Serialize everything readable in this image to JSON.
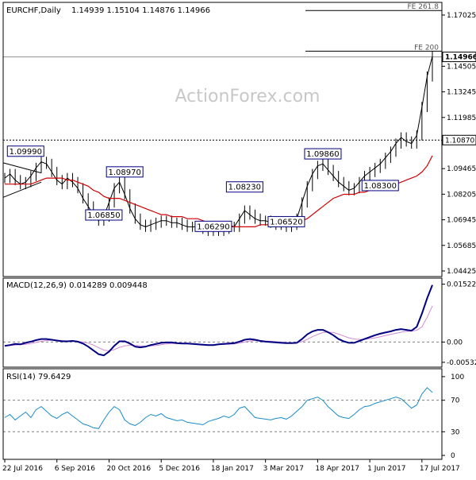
{
  "colors": {
    "background": "#ffffff",
    "frame": "#000000",
    "price": "#000000",
    "moving_average": "#d00000",
    "macd_line": "#000080",
    "signal_line": "#d48ad4",
    "rsi_line": "#1a8cc8",
    "level_line": "#000000",
    "zero_line": "#808080",
    "label_box": "#000080",
    "watermark": "#c8c8c8",
    "current_price_bg": "#ffffff"
  },
  "header": {
    "symbol_label": "EURCHF,Daily",
    "ohlc": "1.14939 1.15104 1.14876 1.14966"
  },
  "watermark": "ActionForex.com",
  "chart_data": [
    {
      "type": "line",
      "panel": "price",
      "title": "EURCHF,Daily",
      "y_ticks": [
        "1.17025",
        "1.14505",
        "1.13245",
        "1.11985",
        "1.09465",
        "1.08205",
        "1.06945",
        "1.05685",
        "1.04425"
      ],
      "y_tick_values": [
        1.17025,
        1.14505,
        1.13245,
        1.11985,
        1.09465,
        1.08205,
        1.06945,
        1.05685,
        1.04425
      ],
      "ylim": [
        1.0415,
        1.1765
      ],
      "current_price": {
        "label": "1.14966",
        "value": 1.14966
      },
      "marked_level": {
        "label": "1.10870",
        "value": 1.1087
      },
      "fibo_levels": [
        {
          "label": "FE 261.8",
          "value": 1.1725
        },
        {
          "label": "FE 200",
          "value": 1.1525
        }
      ],
      "annotations": [
        {
          "label": "1.09990",
          "x": 4,
          "y": 1.0999
        },
        {
          "label": "1.08970",
          "x": 23,
          "y": 1.0897
        },
        {
          "label": "1.06850",
          "x": 19,
          "y": 1.0685
        },
        {
          "label": "1.08230",
          "x": 46,
          "y": 1.0823
        },
        {
          "label": "1.06290",
          "x": 40,
          "y": 1.0629
        },
        {
          "label": "1.06520",
          "x": 54,
          "y": 1.0652
        },
        {
          "label": "1.09860",
          "x": 61,
          "y": 1.0986
        },
        {
          "label": "1.08300",
          "x": 72,
          "y": 1.083
        }
      ],
      "series": [
        {
          "name": "",
          "values": [
            1.09,
            1.092,
            1.089,
            1.087,
            1.088,
            1.091,
            1.095,
            1.098,
            1.097,
            1.093,
            1.089,
            1.087,
            1.09,
            1.088,
            1.085,
            1.08,
            1.076,
            1.072,
            1.069,
            1.071,
            1.078,
            1.085,
            1.088,
            1.082,
            1.075,
            1.07,
            1.067,
            1.066,
            1.067,
            1.068,
            1.069,
            1.069,
            1.068,
            1.068,
            1.067,
            1.066,
            1.066,
            1.066,
            1.065,
            1.064,
            1.064,
            1.064,
            1.065,
            1.066,
            1.066,
            1.07,
            1.074,
            1.072,
            1.07,
            1.069,
            1.069,
            1.068,
            1.067,
            1.067,
            1.066,
            1.067,
            1.07,
            1.078,
            1.086,
            1.092,
            1.096,
            1.097,
            1.094,
            1.091,
            1.088,
            1.086,
            1.084,
            1.085,
            1.088,
            1.091,
            1.093,
            1.095,
            1.097,
            1.1,
            1.103,
            1.107,
            1.11,
            1.108,
            1.107,
            1.111,
            1.125,
            1.14,
            1.15
          ]
        },
        {
          "name": "",
          "values": [
            1.087,
            1.087,
            1.087,
            1.087,
            1.087,
            1.087,
            1.088,
            1.089,
            1.09,
            1.09,
            1.09,
            1.09,
            1.089,
            1.089,
            1.088,
            1.087,
            1.086,
            1.084,
            1.083,
            1.081,
            1.08,
            1.08,
            1.08,
            1.079,
            1.078,
            1.077,
            1.076,
            1.075,
            1.074,
            1.073,
            1.072,
            1.072,
            1.071,
            1.071,
            1.071,
            1.07,
            1.07,
            1.07,
            1.069,
            1.068,
            1.068,
            1.067,
            1.067,
            1.067,
            1.066,
            1.066,
            1.066,
            1.066,
            1.066,
            1.067,
            1.067,
            1.067,
            1.068,
            1.068,
            1.068,
            1.068,
            1.068,
            1.069,
            1.07,
            1.072,
            1.074,
            1.076,
            1.078,
            1.08,
            1.081,
            1.082,
            1.082,
            1.082,
            1.083,
            1.083,
            1.084,
            1.084,
            1.084,
            1.085,
            1.086,
            1.087,
            1.088,
            1.089,
            1.09,
            1.091,
            1.093,
            1.096,
            1.101
          ]
        }
      ]
    },
    {
      "type": "line",
      "panel": "macd",
      "title": "MACD(12,26,9) 0.014289 0.009448",
      "y_ticks": [
        "0.015223",
        "0.00",
        "-0.005329"
      ],
      "y_tick_values": [
        0.015223,
        0.0,
        -0.005329
      ],
      "ylim": [
        -0.0066,
        0.0168
      ],
      "series": [
        {
          "name": "",
          "values": [
            -0.001,
            -0.0008,
            -0.0005,
            -0.0006,
            -0.0002,
            0.0001,
            0.0005,
            0.0008,
            0.0008,
            0.0006,
            0.0004,
            0.0002,
            0.0002,
            0.0003,
            0.0001,
            -0.0004,
            -0.0012,
            -0.0022,
            -0.0032,
            -0.0035,
            -0.0025,
            -0.001,
            0.0002,
            0.0002,
            -0.0004,
            -0.0012,
            -0.0014,
            -0.0012,
            -0.0008,
            -0.0005,
            -0.0002,
            -0.0001,
            -0.0001,
            -0.0003,
            -0.0004,
            -0.0004,
            -0.0005,
            -0.0006,
            -0.0007,
            -0.0008,
            -0.0008,
            -0.0006,
            -0.0005,
            -0.0004,
            -0.0003,
            0.0001,
            0.0006,
            0.0008,
            0.0006,
            0.0003,
            0.0001,
            0.0,
            -0.0001,
            -0.0002,
            -0.0003,
            -0.0003,
            -0.0002,
            0.0008,
            0.002,
            0.0028,
            0.0032,
            0.0032,
            0.0026,
            0.0018,
            0.0008,
            0.0002,
            -0.0002,
            -0.0002,
            0.0003,
            0.0008,
            0.0013,
            0.0018,
            0.0022,
            0.0025,
            0.0028,
            0.0032,
            0.0034,
            0.0032,
            0.003,
            0.004,
            0.0075,
            0.0115,
            0.015
          ]
        },
        {
          "name": "",
          "values": [
            -0.001,
            -0.0009,
            -0.0008,
            -0.0007,
            -0.0006,
            -0.0004,
            -0.0001,
            0.0002,
            0.0004,
            0.0005,
            0.0005,
            0.0004,
            0.0003,
            0.0003,
            0.0002,
            0.0,
            -0.0003,
            -0.0008,
            -0.0015,
            -0.0021,
            -0.0023,
            -0.002,
            -0.0014,
            -0.001,
            -0.0008,
            -0.0009,
            -0.001,
            -0.0011,
            -0.001,
            -0.0009,
            -0.0007,
            -0.0005,
            -0.0004,
            -0.0004,
            -0.0004,
            -0.0004,
            -0.0004,
            -0.0005,
            -0.0006,
            -0.0007,
            -0.0007,
            -0.0007,
            -0.0006,
            -0.0006,
            -0.0005,
            -0.0003,
            0.0,
            0.0003,
            0.0004,
            0.0004,
            0.0003,
            0.0002,
            0.0001,
            0.0,
            -0.0001,
            -0.0002,
            -0.0002,
            0.0001,
            0.0007,
            0.0014,
            0.002,
            0.0025,
            0.0026,
            0.0025,
            0.0021,
            0.0016,
            0.0011,
            0.0008,
            0.0007,
            0.0007,
            0.0009,
            0.0011,
            0.0014,
            0.0017,
            0.002,
            0.0023,
            0.0026,
            0.0028,
            0.0029,
            0.0031,
            0.004,
            0.0065,
            0.0095
          ]
        }
      ]
    },
    {
      "type": "line",
      "panel": "rsi",
      "title": "RSI(14) 79.6429",
      "y_ticks": [
        "100",
        "70",
        "30",
        "0"
      ],
      "y_tick_values": [
        100,
        70,
        30,
        0
      ],
      "ylim": [
        0,
        100
      ],
      "reference_levels": [
        70,
        30
      ],
      "series": [
        {
          "name": "",
          "values": [
            48,
            52,
            45,
            50,
            55,
            48,
            58,
            62,
            56,
            50,
            47,
            52,
            55,
            50,
            45,
            40,
            38,
            35,
            34,
            45,
            55,
            62,
            58,
            45,
            40,
            38,
            42,
            48,
            52,
            50,
            53,
            48,
            46,
            44,
            45,
            42,
            41,
            40,
            39,
            43,
            45,
            47,
            50,
            48,
            52,
            60,
            62,
            55,
            48,
            47,
            46,
            45,
            47,
            48,
            46,
            50,
            56,
            62,
            70,
            72,
            74,
            70,
            62,
            56,
            50,
            48,
            47,
            52,
            58,
            62,
            63,
            66,
            68,
            70,
            72,
            74,
            72,
            66,
            60,
            64,
            78,
            86,
            80
          ]
        }
      ]
    },
    {
      "type": "line",
      "panel": "x_axis",
      "categories": [
        "22 Jul 2016",
        "6 Sep 2016",
        "20 Oct 2016",
        "5 Dec 2016",
        "18 Jan 2017",
        "3 Mar 2017",
        "18 Apr 2017",
        "1 Jun 2017",
        "17 Jul 2017"
      ],
      "category_index": [
        0,
        10,
        20,
        30,
        40,
        50,
        60,
        70,
        80
      ]
    }
  ]
}
